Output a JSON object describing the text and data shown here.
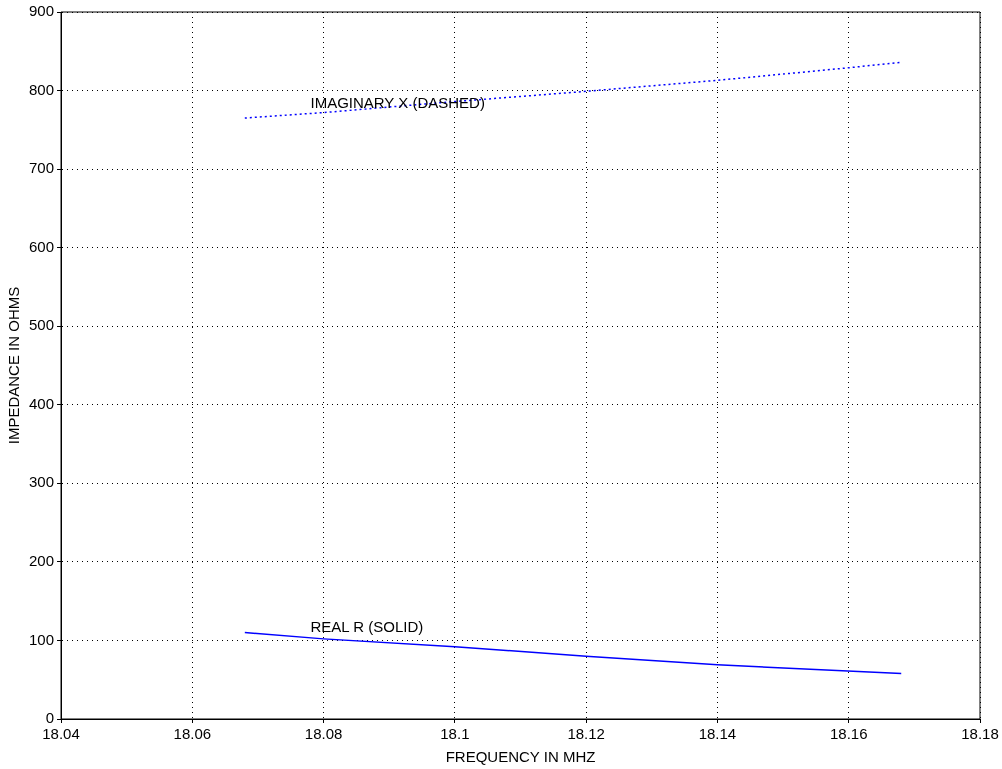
{
  "chart_data": {
    "type": "line",
    "xlabel": "FREQUENCY IN MHZ",
    "ylabel": "IMPEDANCE IN OHMS",
    "series": [
      {
        "color": "#0000ff",
        "line_style": "solid",
        "x": [
          18.068,
          18.08,
          18.1,
          18.12,
          18.14,
          18.168
        ],
        "values": [
          110,
          102,
          92,
          80,
          69,
          58
        ]
      },
      {
        "color": "#0000ff",
        "line_style": "dotted",
        "x": [
          18.068,
          18.08,
          18.1,
          18.12,
          18.14,
          18.16,
          18.168
        ],
        "values": [
          765,
          772,
          786,
          799,
          813,
          829,
          836
        ]
      }
    ],
    "xlim": [
      18.04,
      18.18
    ],
    "xticks": [
      18.04,
      18.06,
      18.08,
      18.1,
      18.12,
      18.14,
      18.16,
      18.18
    ],
    "ylim": [
      0,
      900
    ],
    "yticks": [
      0,
      100,
      200,
      300,
      400,
      500,
      600,
      700,
      800,
      900
    ],
    "grid": true,
    "legend": false,
    "annotations": [
      {
        "text": "IMAGINARY X (DASHED)",
        "x": 18.078,
        "y": 770
      },
      {
        "text": "REAL R (SOLID)",
        "x": 18.078,
        "y": 103
      }
    ]
  }
}
